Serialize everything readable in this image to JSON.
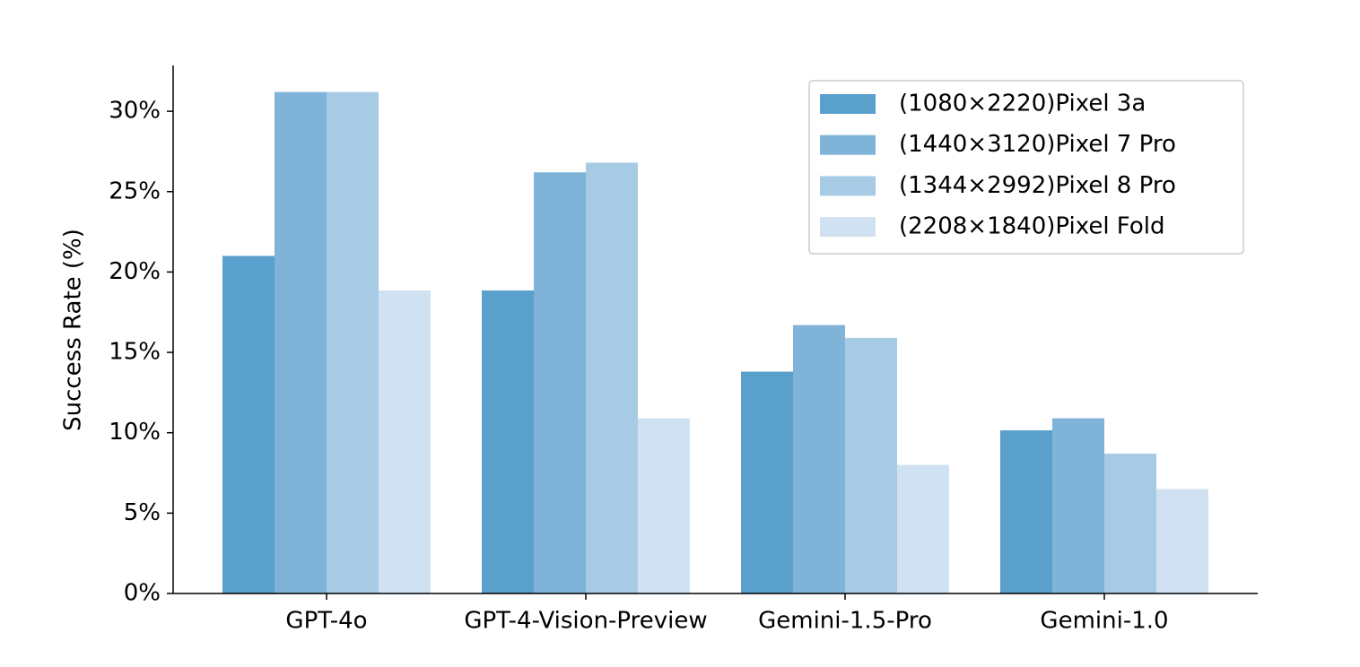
{
  "chart_data": {
    "type": "bar",
    "y_label": "Success Rate (%)",
    "categories": [
      "GPT-4o",
      "GPT-4-Vision-Preview",
      "Gemini-1.5-Pro",
      "Gemini-1.0"
    ],
    "series": [
      {
        "name": "(1080×2220)Pixel 3a",
        "color": "#5aa0cc",
        "values": [
          21.0,
          18.85,
          13.8,
          10.15
        ]
      },
      {
        "name": "(1440×3120)Pixel 7 Pro",
        "color": "#7fb4d8",
        "values": [
          31.2,
          26.2,
          16.7,
          10.9
        ]
      },
      {
        "name": "(1344×2992)Pixel 8 Pro",
        "color": "#a8cbe5",
        "values": [
          31.2,
          26.8,
          15.9,
          8.7
        ]
      },
      {
        "name": "(2208×1840)Pixel Fold",
        "color": "#d0e2f1",
        "values": [
          18.85,
          10.9,
          8.0,
          6.5
        ]
      }
    ],
    "ylim": [
      0,
      32.85
    ],
    "yticks": [
      {
        "value": 0,
        "label": "0%"
      },
      {
        "value": 5,
        "label": "5%"
      },
      {
        "value": 10,
        "label": "10%"
      },
      {
        "value": 15,
        "label": "15%"
      },
      {
        "value": 20,
        "label": "20%"
      },
      {
        "value": 25,
        "label": "25%"
      },
      {
        "value": 30,
        "label": "30%"
      }
    ],
    "legend": "upper right"
  }
}
